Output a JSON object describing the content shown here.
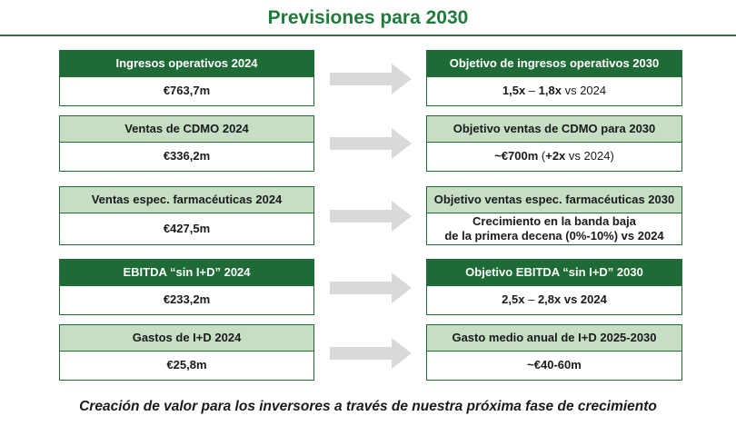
{
  "title": "Previsiones para 2030",
  "footer": "Creación de valor para los inversores a través de nuestra próxima fase de crecimiento",
  "rows": [
    {
      "left_header": "Ingresos operativos 2024",
      "left_value": "€763,7m",
      "right_header": "Objetivo de ingresos operativos 2030",
      "right_value_bold1": "1,5x",
      "right_value_sep": " – ",
      "right_value_bold2": "1,8x",
      "right_value_rest": " vs 2024",
      "header_style": "dark"
    },
    {
      "left_header": "Ventas de CDMO 2024",
      "left_value": "€336,2m",
      "right_header": "Objetivo ventas de CDMO para 2030",
      "right_value_bold1": "~€700m",
      "right_value_sep": " (",
      "right_value_bold2": "+2x",
      "right_value_rest": " vs 2024)",
      "header_style": "light"
    },
    {
      "left_header": "Ventas espec. farmacéuticas 2024",
      "left_value": "€427,5m",
      "right_header": "Objetivo ventas espec. farmacéuticas 2030",
      "right_value_line1": "Crecimiento en la banda baja",
      "right_value_line2": "de la primera decena (0%-10%) vs 2024",
      "header_style": "light"
    },
    {
      "left_header": "EBITDA “sin I+D” 2024",
      "left_value": "€233,2m",
      "right_header": "Objetivo EBITDA “sin I+D” 2030",
      "right_value_bold1": "2,5x",
      "right_value_sep": " – ",
      "right_value_bold2": "2,8x vs 2024",
      "right_value_rest": "",
      "header_style": "dark"
    },
    {
      "left_header": "Gastos de I+D 2024",
      "left_value": "€25,8m",
      "right_header": "Gasto medio anual de I+D 2025-2030",
      "right_value_bold1": "~€40-60m",
      "right_value_sep": "",
      "right_value_bold2": "",
      "right_value_rest": "",
      "header_style": "light"
    }
  ],
  "colors": {
    "accent_dark_green": "#1f6b35",
    "light_green": "#c6dfc4",
    "title_green": "#1f7a3c",
    "arrow_gray": "#d9d9d9"
  }
}
